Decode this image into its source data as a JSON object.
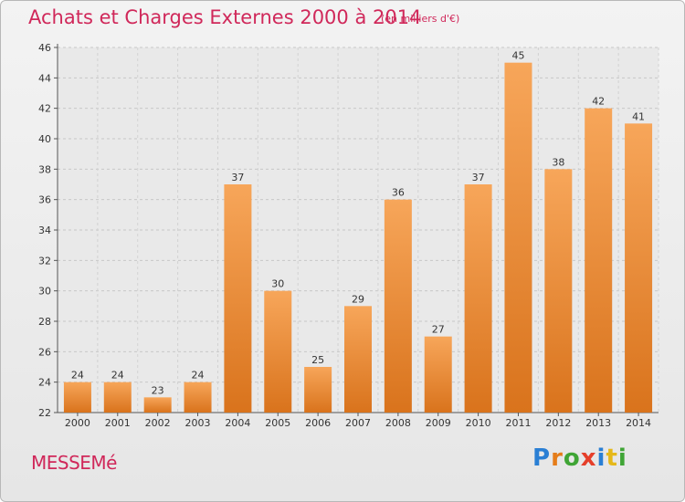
{
  "title": "Achats et Charges Externes 2000 à 2014",
  "subtitle": "(en milliers d'€)",
  "commune": "MESSEMé",
  "logo": {
    "letters": [
      "P",
      "r",
      "o",
      "x",
      "i",
      "t",
      "i"
    ],
    "colors": [
      "#2a7fd4",
      "#e57d1a",
      "#3fa535",
      "#e53f2a",
      "#2a7fd4",
      "#e5b81a",
      "#3fa535"
    ]
  },
  "chart_data": {
    "type": "bar",
    "categories": [
      "2000",
      "2001",
      "2002",
      "2003",
      "2004",
      "2005",
      "2006",
      "2007",
      "2008",
      "2009",
      "2010",
      "2011",
      "2012",
      "2013",
      "2014"
    ],
    "values": [
      24,
      24,
      23,
      24,
      37,
      30,
      25,
      29,
      36,
      27,
      37,
      45,
      38,
      42,
      41
    ],
    "ylim": [
      22,
      46
    ],
    "yticks": [
      22,
      24,
      26,
      28,
      30,
      32,
      34,
      36,
      38,
      40,
      42,
      44,
      46
    ],
    "grid": true,
    "bar_color_top": "#f7a65a",
    "bar_color_bottom": "#d9731c"
  }
}
